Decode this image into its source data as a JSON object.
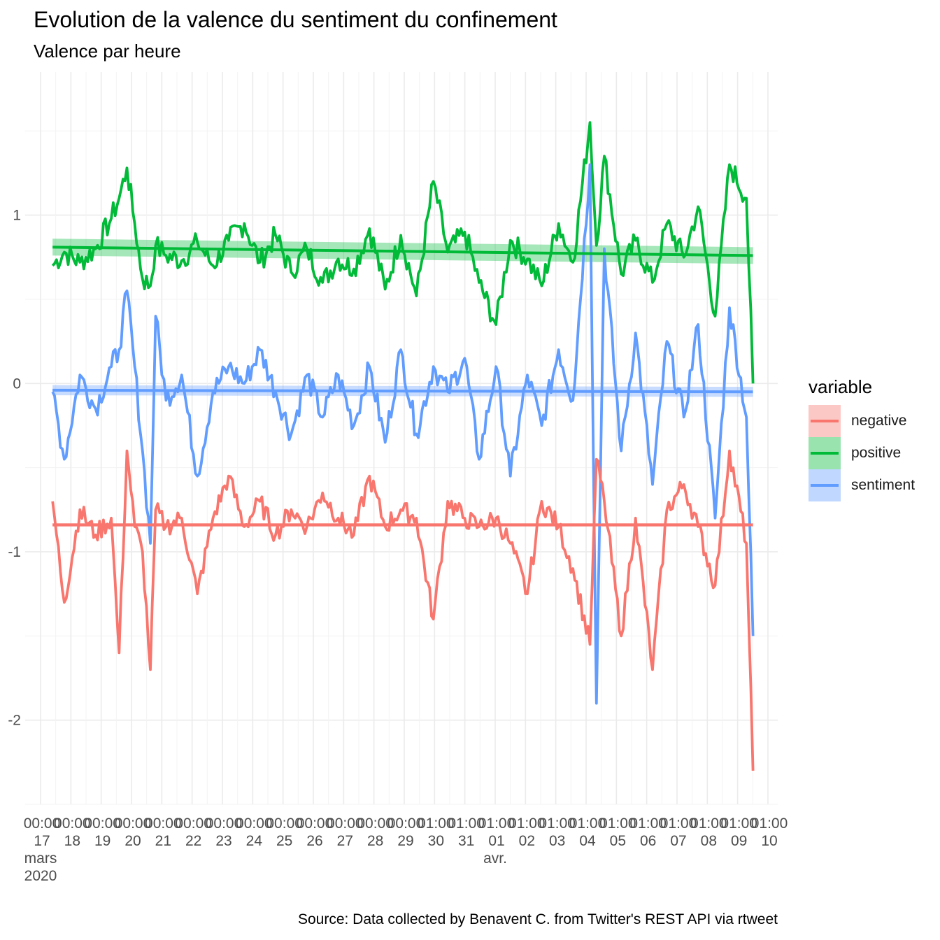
{
  "title": "Evolution de la valence du sentiment du confinement",
  "subtitle": "Valence par heure",
  "caption": "Source: Data collected by Benavent C. from Twitter's REST API via rtweet",
  "legend": {
    "title": "variable",
    "items": [
      {
        "label": "negative",
        "color": "#F8766D"
      },
      {
        "label": "positive",
        "color": "#00BA38"
      },
      {
        "label": "sentiment",
        "color": "#619CFF"
      }
    ]
  },
  "chart_data": {
    "type": "line",
    "title": "Evolution de la valence du sentiment du confinement",
    "subtitle": "Valence par heure",
    "xlabel": "",
    "ylabel": "",
    "x_type": "datetime",
    "xlim": [
      "2020-03-17T00:00",
      "2020-04-10T01:00"
    ],
    "ylim": [
      -2.5,
      1.85
    ],
    "y_ticks": [
      -2,
      -1,
      0,
      1
    ],
    "y_tick_labels": [
      "-2",
      "-1",
      "0",
      "1"
    ],
    "x_ticks": [
      {
        "time": "00:00",
        "day": "17",
        "extra": [
          "mars",
          "2020"
        ]
      },
      {
        "time": "00:00",
        "day": "18"
      },
      {
        "time": "00:00",
        "day": "19"
      },
      {
        "time": "00:00",
        "day": "20"
      },
      {
        "time": "00:00",
        "day": "21"
      },
      {
        "time": "00:00",
        "day": "22"
      },
      {
        "time": "00:00",
        "day": "23"
      },
      {
        "time": "00:00",
        "day": "24"
      },
      {
        "time": "00:00",
        "day": "25"
      },
      {
        "time": "00:00",
        "day": "26"
      },
      {
        "time": "00:00",
        "day": "27"
      },
      {
        "time": "00:00",
        "day": "28"
      },
      {
        "time": "00:00",
        "day": "29"
      },
      {
        "time": "01:00",
        "day": "30"
      },
      {
        "time": "01:00",
        "day": "31"
      },
      {
        "time": "01:00",
        "day": "01",
        "extra": [
          "avr."
        ]
      },
      {
        "time": "01:00",
        "day": "02"
      },
      {
        "time": "01:00",
        "day": "03"
      },
      {
        "time": "01:00",
        "day": "04"
      },
      {
        "time": "01:00",
        "day": "05"
      },
      {
        "time": "01:00",
        "day": "06"
      },
      {
        "time": "01:00",
        "day": "07"
      },
      {
        "time": "01:00",
        "day": "08"
      },
      {
        "time": "01:00",
        "day": "09"
      },
      {
        "time": "01:00",
        "day": "10"
      }
    ],
    "grid": true,
    "legend_position": "right",
    "series": [
      {
        "name": "positive",
        "color": "#00BA38",
        "x": [
          "2020-03-17T21:00",
          "2020-03-18T06:00",
          "2020-03-18T18:00",
          "2020-03-19T06:00",
          "2020-03-19T18:00",
          "2020-03-20T00:00",
          "2020-03-20T06:00",
          "2020-03-20T12:00",
          "2020-03-20T18:00",
          "2020-03-21T00:00",
          "2020-03-21T04:00",
          "2020-03-21T12:00",
          "2020-03-22T00:00",
          "2020-03-22T12:00",
          "2020-03-23T00:00",
          "2020-03-23T12:00",
          "2020-03-24T00:00",
          "2020-03-24T12:00",
          "2020-03-25T00:00",
          "2020-03-25T12:00",
          "2020-03-26T00:00",
          "2020-03-26T12:00",
          "2020-03-27T00:00",
          "2020-03-27T12:00",
          "2020-03-28T00:00",
          "2020-03-28T12:00",
          "2020-03-29T00:00",
          "2020-03-29T12:00",
          "2020-03-30T01:00",
          "2020-03-30T12:00",
          "2020-03-31T01:00",
          "2020-03-31T12:00",
          "2020-04-01T01:00",
          "2020-04-01T12:00",
          "2020-04-02T01:00",
          "2020-04-02T12:00",
          "2020-04-03T01:00",
          "2020-04-03T12:00",
          "2020-04-04T01:00",
          "2020-04-04T06:00",
          "2020-04-04T12:00",
          "2020-04-05T01:00",
          "2020-04-05T12:00",
          "2020-04-06T01:00",
          "2020-04-06T12:00",
          "2020-04-07T01:00",
          "2020-04-07T12:00",
          "2020-04-08T01:00",
          "2020-04-08T12:00",
          "2020-04-09T01:00",
          "2020-04-09T06:00"
        ],
        "values": [
          0.7,
          0.78,
          0.72,
          0.8,
          0.98,
          1.1,
          1.28,
          0.95,
          0.62,
          0.58,
          0.82,
          0.76,
          0.73,
          0.84,
          0.7,
          0.85,
          0.95,
          0.72,
          0.88,
          0.66,
          0.8,
          0.6,
          0.74,
          0.68,
          0.92,
          0.56,
          0.88,
          0.52,
          1.2,
          0.78,
          0.9,
          0.6,
          0.35,
          0.85,
          0.74,
          0.58,
          0.95,
          0.72,
          1.55,
          0.82,
          1.35,
          0.65,
          0.85,
          0.6,
          0.95,
          0.75,
          1.05,
          0.4,
          1.3,
          1.1,
          0.0
        ],
        "trend": [
          0.81,
          0.76
        ],
        "trend_band": 0.05
      },
      {
        "name": "sentiment",
        "color": "#619CFF",
        "x": [
          "2020-03-17T21:00",
          "2020-03-18T06:00",
          "2020-03-18T18:00",
          "2020-03-19T06:00",
          "2020-03-19T18:00",
          "2020-03-20T00:00",
          "2020-03-20T06:00",
          "2020-03-20T12:00",
          "2020-03-20T18:00",
          "2020-03-21T00:00",
          "2020-03-21T04:00",
          "2020-03-21T12:00",
          "2020-03-22T00:00",
          "2020-03-22T12:00",
          "2020-03-23T00:00",
          "2020-03-23T12:00",
          "2020-03-24T00:00",
          "2020-03-24T12:00",
          "2020-03-25T00:00",
          "2020-03-25T12:00",
          "2020-03-26T00:00",
          "2020-03-26T12:00",
          "2020-03-27T00:00",
          "2020-03-27T12:00",
          "2020-03-28T00:00",
          "2020-03-28T12:00",
          "2020-03-29T00:00",
          "2020-03-29T12:00",
          "2020-03-30T01:00",
          "2020-03-30T12:00",
          "2020-03-31T01:00",
          "2020-03-31T12:00",
          "2020-04-01T01:00",
          "2020-04-01T12:00",
          "2020-04-02T01:00",
          "2020-04-02T12:00",
          "2020-04-03T01:00",
          "2020-04-03T12:00",
          "2020-04-04T01:00",
          "2020-04-04T06:00",
          "2020-04-04T12:00",
          "2020-04-05T01:00",
          "2020-04-05T12:00",
          "2020-04-06T01:00",
          "2020-04-06T12:00",
          "2020-04-07T01:00",
          "2020-04-07T12:00",
          "2020-04-08T01:00",
          "2020-04-08T12:00",
          "2020-04-09T01:00",
          "2020-04-09T06:00"
        ],
        "values": [
          -0.05,
          -0.45,
          0.05,
          -0.15,
          0.1,
          0.2,
          0.55,
          0.1,
          -0.4,
          -0.95,
          0.4,
          -0.1,
          0.05,
          -0.55,
          -0.05,
          0.1,
          0.0,
          0.2,
          -0.05,
          -0.3,
          0.05,
          -0.2,
          0.05,
          -0.25,
          0.1,
          -0.35,
          0.2,
          -0.3,
          0.1,
          -0.05,
          0.15,
          -0.45,
          0.1,
          -0.55,
          0.05,
          -0.25,
          0.2,
          -0.1,
          1.3,
          -1.9,
          0.8,
          -0.4,
          0.3,
          -0.6,
          0.25,
          -0.2,
          0.35,
          -0.8,
          0.45,
          -0.2,
          -1.5
        ],
        "trend": [
          -0.04,
          -0.05
        ],
        "trend_band": 0.03
      },
      {
        "name": "negative",
        "color": "#F8766D",
        "x": [
          "2020-03-17T21:00",
          "2020-03-18T06:00",
          "2020-03-18T18:00",
          "2020-03-19T06:00",
          "2020-03-19T18:00",
          "2020-03-20T00:00",
          "2020-03-20T06:00",
          "2020-03-20T12:00",
          "2020-03-20T18:00",
          "2020-03-21T00:00",
          "2020-03-21T04:00",
          "2020-03-21T12:00",
          "2020-03-22T00:00",
          "2020-03-22T12:00",
          "2020-03-23T00:00",
          "2020-03-23T12:00",
          "2020-03-24T00:00",
          "2020-03-24T12:00",
          "2020-03-25T00:00",
          "2020-03-25T12:00",
          "2020-03-26T00:00",
          "2020-03-26T12:00",
          "2020-03-27T00:00",
          "2020-03-27T12:00",
          "2020-03-28T00:00",
          "2020-03-28T12:00",
          "2020-03-29T00:00",
          "2020-03-29T12:00",
          "2020-03-30T01:00",
          "2020-03-30T12:00",
          "2020-03-31T01:00",
          "2020-03-31T12:00",
          "2020-04-01T01:00",
          "2020-04-01T12:00",
          "2020-04-02T01:00",
          "2020-04-02T12:00",
          "2020-04-03T01:00",
          "2020-04-03T12:00",
          "2020-04-04T01:00",
          "2020-04-04T06:00",
          "2020-04-04T12:00",
          "2020-04-05T01:00",
          "2020-04-05T12:00",
          "2020-04-06T01:00",
          "2020-04-06T12:00",
          "2020-04-07T01:00",
          "2020-04-07T12:00",
          "2020-04-08T01:00",
          "2020-04-08T12:00",
          "2020-04-09T01:00",
          "2020-04-09T06:00"
        ],
        "values": [
          -0.7,
          -1.3,
          -0.75,
          -0.9,
          -0.8,
          -1.6,
          -0.4,
          -0.85,
          -1.0,
          -1.7,
          -0.75,
          -0.85,
          -0.8,
          -1.25,
          -0.8,
          -0.55,
          -0.85,
          -0.7,
          -0.9,
          -0.75,
          -0.85,
          -0.65,
          -0.8,
          -0.9,
          -0.55,
          -0.85,
          -0.75,
          -0.8,
          -1.4,
          -0.7,
          -0.8,
          -0.85,
          -0.8,
          -0.95,
          -1.25,
          -0.7,
          -0.85,
          -1.1,
          -1.55,
          -0.45,
          -0.7,
          -1.5,
          -0.8,
          -1.7,
          -0.75,
          -0.6,
          -0.85,
          -1.2,
          -0.4,
          -0.95,
          -2.3
        ],
        "trend": [
          -0.84,
          -0.84
        ],
        "trend_band": 0.01
      }
    ]
  }
}
